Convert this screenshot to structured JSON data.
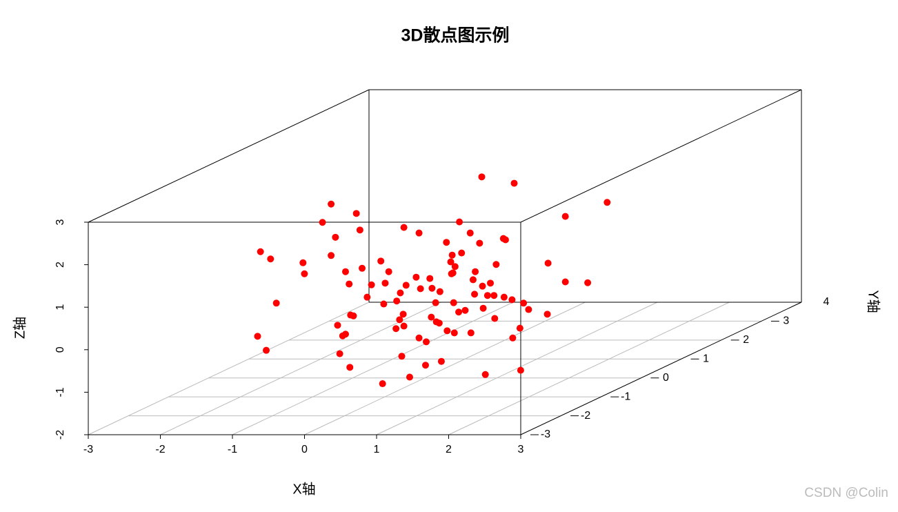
{
  "chart_data": {
    "type": "scatter3d",
    "title": "3D散点图示例",
    "xlabel": "X轴",
    "ylabel": "Y轴",
    "zlabel": "Z轴",
    "xlim": [
      -3,
      3
    ],
    "ylim": [
      -3,
      4
    ],
    "zlim": [
      -2,
      3
    ],
    "xticks": [
      -3,
      -2,
      -1,
      0,
      1,
      2,
      3
    ],
    "yticks": [
      -3,
      -2,
      -1,
      0,
      1,
      2,
      3,
      4
    ],
    "zticks": [
      -2,
      -1,
      0,
      1,
      2,
      3
    ],
    "grid": true,
    "color": "#ff0000",
    "x": [
      0.79,
      1.24,
      2.53,
      -1.3,
      -0.95,
      1.95,
      -1.42,
      0.48,
      -0.9,
      -0.29,
      -0.08,
      0.63,
      -1.24,
      1.09,
      1.12,
      0.3,
      0.76,
      -2.28,
      0.51,
      0.38,
      -2.14,
      -1.3,
      0.36,
      -1.69,
      -0.61,
      0.99,
      0.42,
      1.71,
      -0.87,
      -1.1,
      -0.5,
      0.7,
      -1.67,
      0.37,
      0.39,
      -0.12,
      0.07,
      0.67,
      1.95,
      2.26,
      -1.05,
      -0.74,
      -0.55,
      -0.26,
      0.91,
      -0.06,
      0.1,
      0.8,
      -0.34,
      0.21,
      0.69,
      0.96,
      0.87,
      1.1,
      -0.8,
      -0.39,
      0.15,
      0.4,
      1.21,
      -2.06,
      -0.57,
      1.37,
      0.81,
      0.56,
      0.47,
      1.44,
      -0.3,
      -1.03,
      -0.99,
      0.09,
      1.7,
      0.97,
      -0.35,
      0.16,
      0.2,
      -1.21,
      -0.29,
      -0.4,
      1.32,
      0.31,
      0.64,
      0.41,
      -1.1,
      -1.14,
      -2.32,
      -0.08,
      1.22,
      0.02,
      -2.2,
      -1.18,
      -0.32,
      0.23,
      0.01,
      -1.04,
      1.33,
      0.84,
      -0.21,
      -0.03
    ],
    "y": [
      0,
      0,
      0,
      0,
      0,
      0,
      0,
      0,
      0,
      0,
      0,
      0,
      0,
      0,
      0,
      0,
      0,
      0,
      0,
      0,
      0,
      0,
      0,
      0,
      0,
      0,
      0,
      0,
      0,
      0,
      0,
      0,
      0,
      0,
      0,
      0,
      0,
      0,
      0,
      0,
      0,
      0,
      0,
      0,
      0,
      0,
      0,
      0,
      0,
      0,
      0,
      0,
      0,
      0,
      0,
      0,
      0,
      0,
      0,
      0,
      0,
      0,
      0,
      0,
      0,
      0,
      0,
      0,
      0,
      0,
      0,
      0,
      0,
      0,
      0,
      0,
      0,
      0,
      0,
      0,
      0,
      0,
      0,
      0,
      0,
      0,
      0,
      0,
      0,
      0,
      0,
      0,
      0,
      0,
      0,
      0,
      0,
      -1
    ],
    "z": [
      2.73,
      2.58,
      2.13,
      2.09,
      1.87,
      1.8,
      1.66,
      1.67,
      1.48,
      1.54,
      1.41,
      1.41,
      1.31,
      1.28,
      1.25,
      1.19,
      1.17,
      0.97,
      0.94,
      0.89,
      0.8,
      0.88,
      0.73,
      0.71,
      0.75,
      0.67,
      0.62,
      0.7,
      0.58,
      0.5,
      0.5,
      0.5,
      0.45,
      0.45,
      0.47,
      0.37,
      0.34,
      0.31,
      0.26,
      0.24,
      0.21,
      0.19,
      0.23,
      0.18,
      0.23,
      0.1,
      0.11,
      0.16,
      0.0,
      0.03,
      -0.03,
      -0.06,
      -0.06,
      -0.1,
      -0.1,
      -0.19,
      -0.23,
      -0.23,
      -0.16,
      -0.24,
      -0.26,
      -0.24,
      -0.36,
      -0.41,
      -0.45,
      -0.39,
      -0.5,
      -0.52,
      -0.54,
      -0.57,
      -0.5,
      -0.6,
      -0.63,
      -0.68,
      -0.71,
      -0.76,
      -0.78,
      -0.84,
      -0.83,
      -0.89,
      -0.94,
      -0.94,
      -0.97,
      -1.01,
      -1.02,
      -1.06,
      -1.06,
      -1.15,
      -1.35,
      -1.43,
      -1.49,
      -1.61,
      -1.7,
      -1.75,
      -1.82,
      -1.92,
      -1.98,
      -1.69
    ]
  },
  "watermark": "CSDN @Colin"
}
